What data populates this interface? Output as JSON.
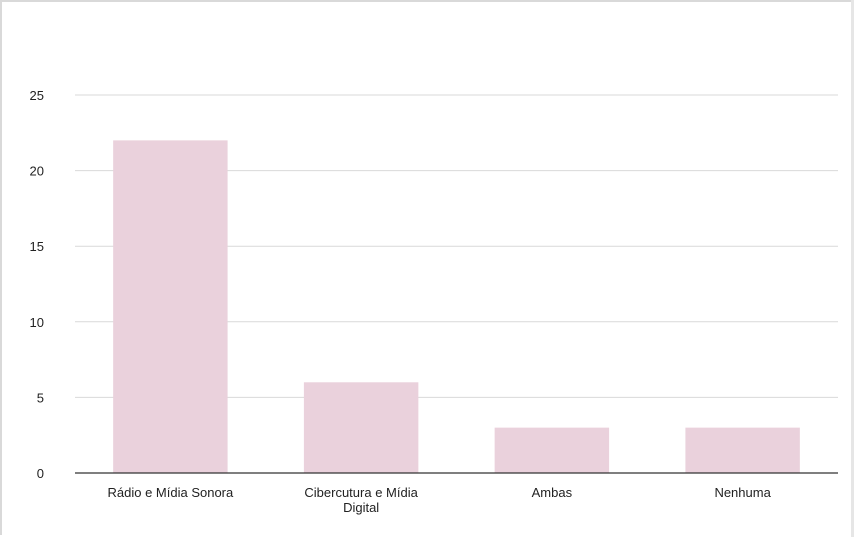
{
  "chart_data": {
    "type": "bar",
    "title": "",
    "xlabel": "",
    "ylabel": "",
    "categories": [
      [
        "Rádio e Mídia Sonora"
      ],
      [
        "Cibercutura e Mídia",
        "Digital"
      ],
      [
        "Ambas"
      ],
      [
        "Nenhuma"
      ]
    ],
    "values": [
      22,
      6,
      3,
      3
    ],
    "ylim": [
      0,
      25
    ],
    "yticks": [
      0,
      5,
      10,
      15,
      20,
      25
    ],
    "grid": true,
    "legend": "none",
    "colors": {
      "bar": "#ead1dc",
      "grid": "#d9d9d9",
      "axis": "#333333",
      "text": "#222222"
    }
  }
}
